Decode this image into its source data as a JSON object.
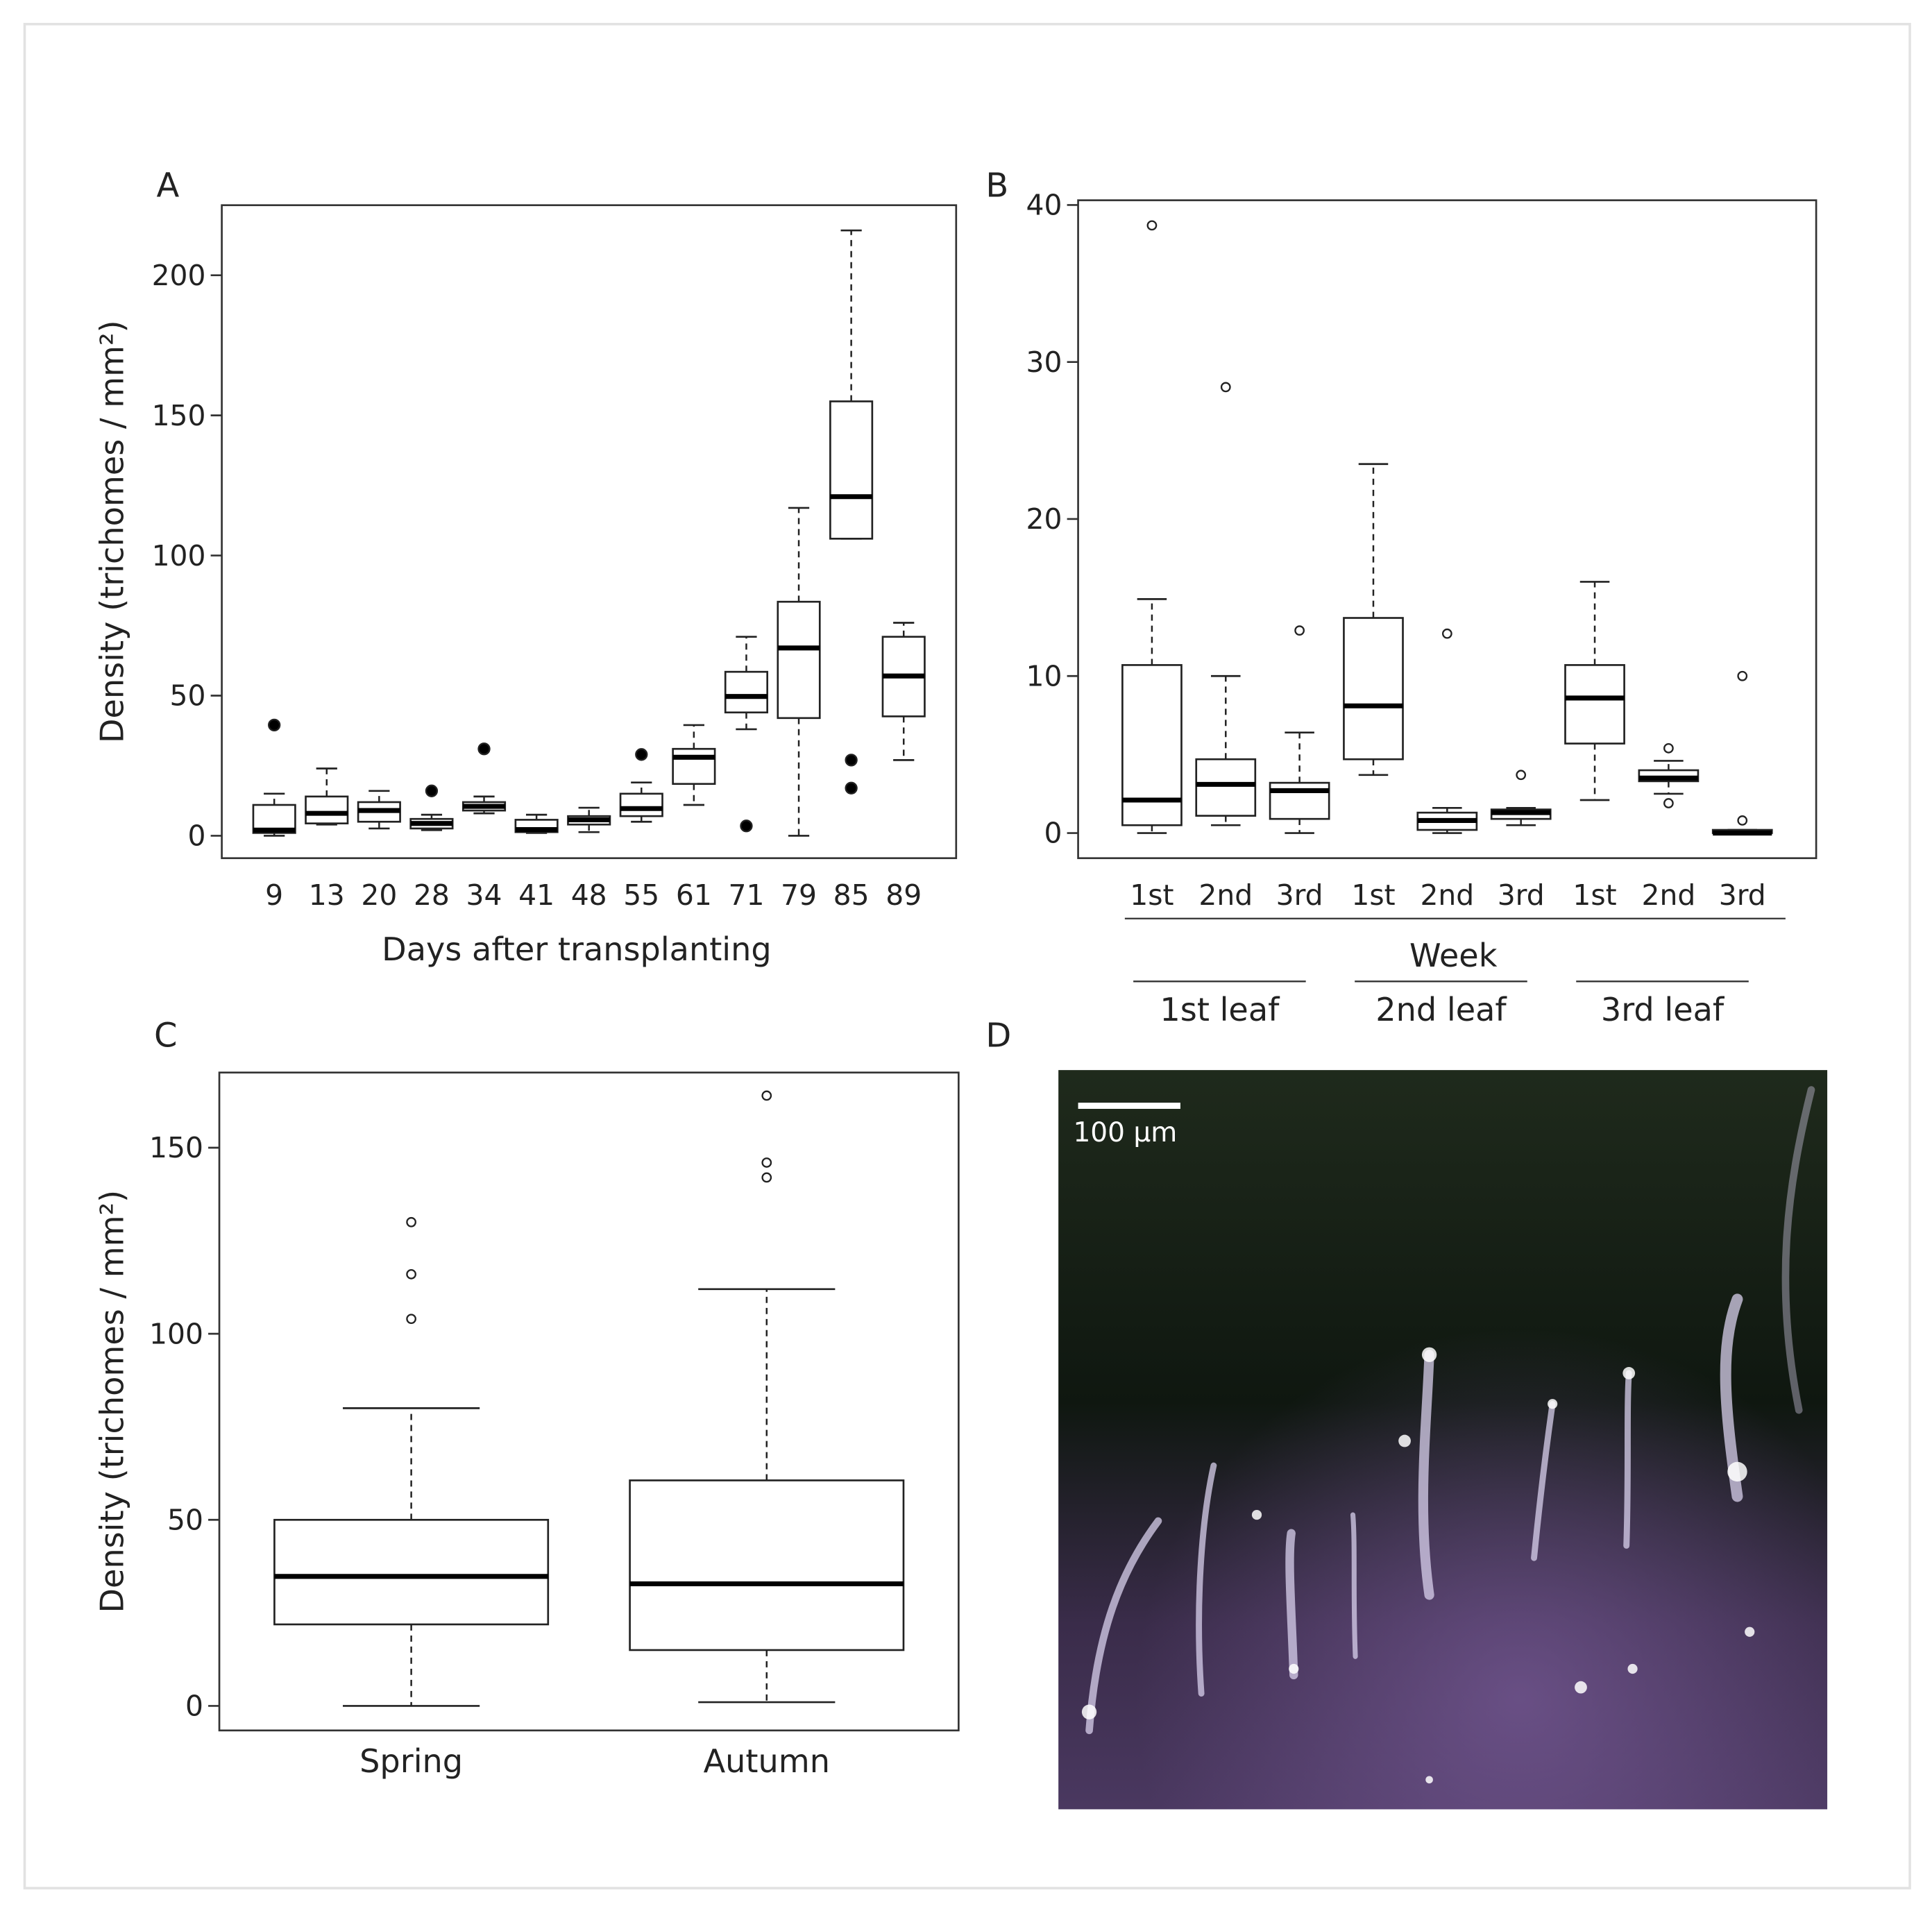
{
  "chart_data": [
    {
      "type": "boxplot",
      "panel": "A",
      "y_label": "Density (trichomes / mm²)",
      "x_label": "Days after transplanting",
      "outlier_style": "filled",
      "categories": [
        "9",
        "13",
        "20",
        "28",
        "34",
        "41",
        "48",
        "55",
        "61",
        "71",
        "79",
        "85",
        "89"
      ],
      "boxes": [
        {
          "min": 0,
          "q1": 1,
          "median": 2,
          "q3": 11,
          "max": 15,
          "outliers": [
            39.5
          ]
        },
        {
          "min": 4,
          "q1": 4.4,
          "median": 8,
          "q3": 14,
          "max": 24,
          "outliers": []
        },
        {
          "min": 2.6,
          "q1": 5,
          "median": 9,
          "q3": 12,
          "max": 16,
          "outliers": []
        },
        {
          "min": 2,
          "q1": 2.6,
          "median": 4.4,
          "q3": 6,
          "max": 7.5,
          "outliers": [
            16
          ]
        },
        {
          "min": 8,
          "q1": 9,
          "median": 10.5,
          "q3": 12,
          "max": 14,
          "outliers": [
            31
          ]
        },
        {
          "min": 1,
          "q1": 1.3,
          "median": 2.2,
          "q3": 5.7,
          "max": 7.5,
          "outliers": []
        },
        {
          "min": 1.3,
          "q1": 4,
          "median": 5.7,
          "q3": 7,
          "max": 10,
          "outliers": []
        },
        {
          "min": 5,
          "q1": 7,
          "median": 9.7,
          "q3": 15,
          "max": 19,
          "outliers": [
            29
          ]
        },
        {
          "min": 11,
          "q1": 18.5,
          "median": 28,
          "q3": 31,
          "max": 39.5,
          "outliers": []
        },
        {
          "min": 38,
          "q1": 44,
          "median": 49.7,
          "q3": 58.5,
          "max": 71,
          "outliers": [
            3.5
          ]
        },
        {
          "min": 0,
          "q1": 42,
          "median": 67,
          "q3": 83.5,
          "max": 117,
          "outliers": []
        },
        {
          "min": 106,
          "q1": 106,
          "median": 121,
          "q3": 155,
          "max": 216,
          "outliers": [
            27,
            17
          ]
        },
        {
          "min": 27,
          "q1": 42.6,
          "median": 57,
          "q3": 71,
          "max": 76,
          "outliers": []
        }
      ],
      "ylim": [
        -8,
        225
      ],
      "yticks": [
        0,
        50,
        100,
        150,
        200
      ]
    },
    {
      "type": "boxplot",
      "panel": "B",
      "x_label": "Week",
      "outlier_style": "open",
      "categories": [
        "1st",
        "2nd",
        "3rd",
        "1st",
        "2nd",
        "3rd",
        "1st",
        "2nd",
        "3rd"
      ],
      "groups": [
        "1st leaf",
        "2nd leaf",
        "3rd leaf"
      ],
      "boxes": [
        {
          "min": 0,
          "q1": 0.5,
          "median": 2.1,
          "q3": 10.7,
          "max": 14.9,
          "outliers": [
            38.7
          ]
        },
        {
          "min": 0.5,
          "q1": 1.1,
          "median": 3.1,
          "q3": 4.7,
          "max": 10,
          "outliers": [
            28.4
          ]
        },
        {
          "min": 0,
          "q1": 0.9,
          "median": 2.7,
          "q3": 3.2,
          "max": 6.4,
          "outliers": [
            12.9
          ]
        },
        {
          "min": 3.7,
          "q1": 4.7,
          "median": 8.1,
          "q3": 13.7,
          "max": 23.5,
          "outliers": []
        },
        {
          "min": 0,
          "q1": 0.2,
          "median": 0.8,
          "q3": 1.3,
          "max": 1.6,
          "outliers": [
            12.7
          ]
        },
        {
          "min": 0.5,
          "q1": 0.9,
          "median": 1.3,
          "q3": 1.5,
          "max": 1.6,
          "outliers": [
            3.7
          ]
        },
        {
          "min": 2.1,
          "q1": 5.7,
          "median": 8.6,
          "q3": 10.7,
          "max": 16,
          "outliers": []
        },
        {
          "min": 2.5,
          "q1": 3.3,
          "median": 3.5,
          "q3": 4,
          "max": 4.6,
          "outliers": [
            5.4,
            1.9
          ]
        },
        {
          "min": 0,
          "q1": 0,
          "median": 0,
          "q3": 0.2,
          "max": 0.2,
          "outliers": [
            10,
            0.8
          ]
        }
      ],
      "ylim": [
        -1.6,
        40.3
      ],
      "yticks": [
        0,
        10,
        20,
        30,
        40
      ]
    },
    {
      "type": "boxplot",
      "panel": "C",
      "y_label": "Density (trichomes / mm²)",
      "outlier_style": "open",
      "categories": [
        "Spring",
        "Autumn"
      ],
      "boxes": [
        {
          "min": 0,
          "q1": 21.9,
          "median": 34.8,
          "q3": 50,
          "max": 80,
          "outliers": [
            130,
            116,
            104
          ]
        },
        {
          "min": 1,
          "q1": 15,
          "median": 32.8,
          "q3": 60.6,
          "max": 112,
          "outliers": [
            164,
            146,
            142
          ]
        }
      ],
      "ylim": [
        -6.6,
        170.2
      ],
      "yticks": [
        0,
        50,
        100,
        150
      ]
    }
  ],
  "image_panel": {
    "panel": "D",
    "scale_bar": "100 µm"
  }
}
